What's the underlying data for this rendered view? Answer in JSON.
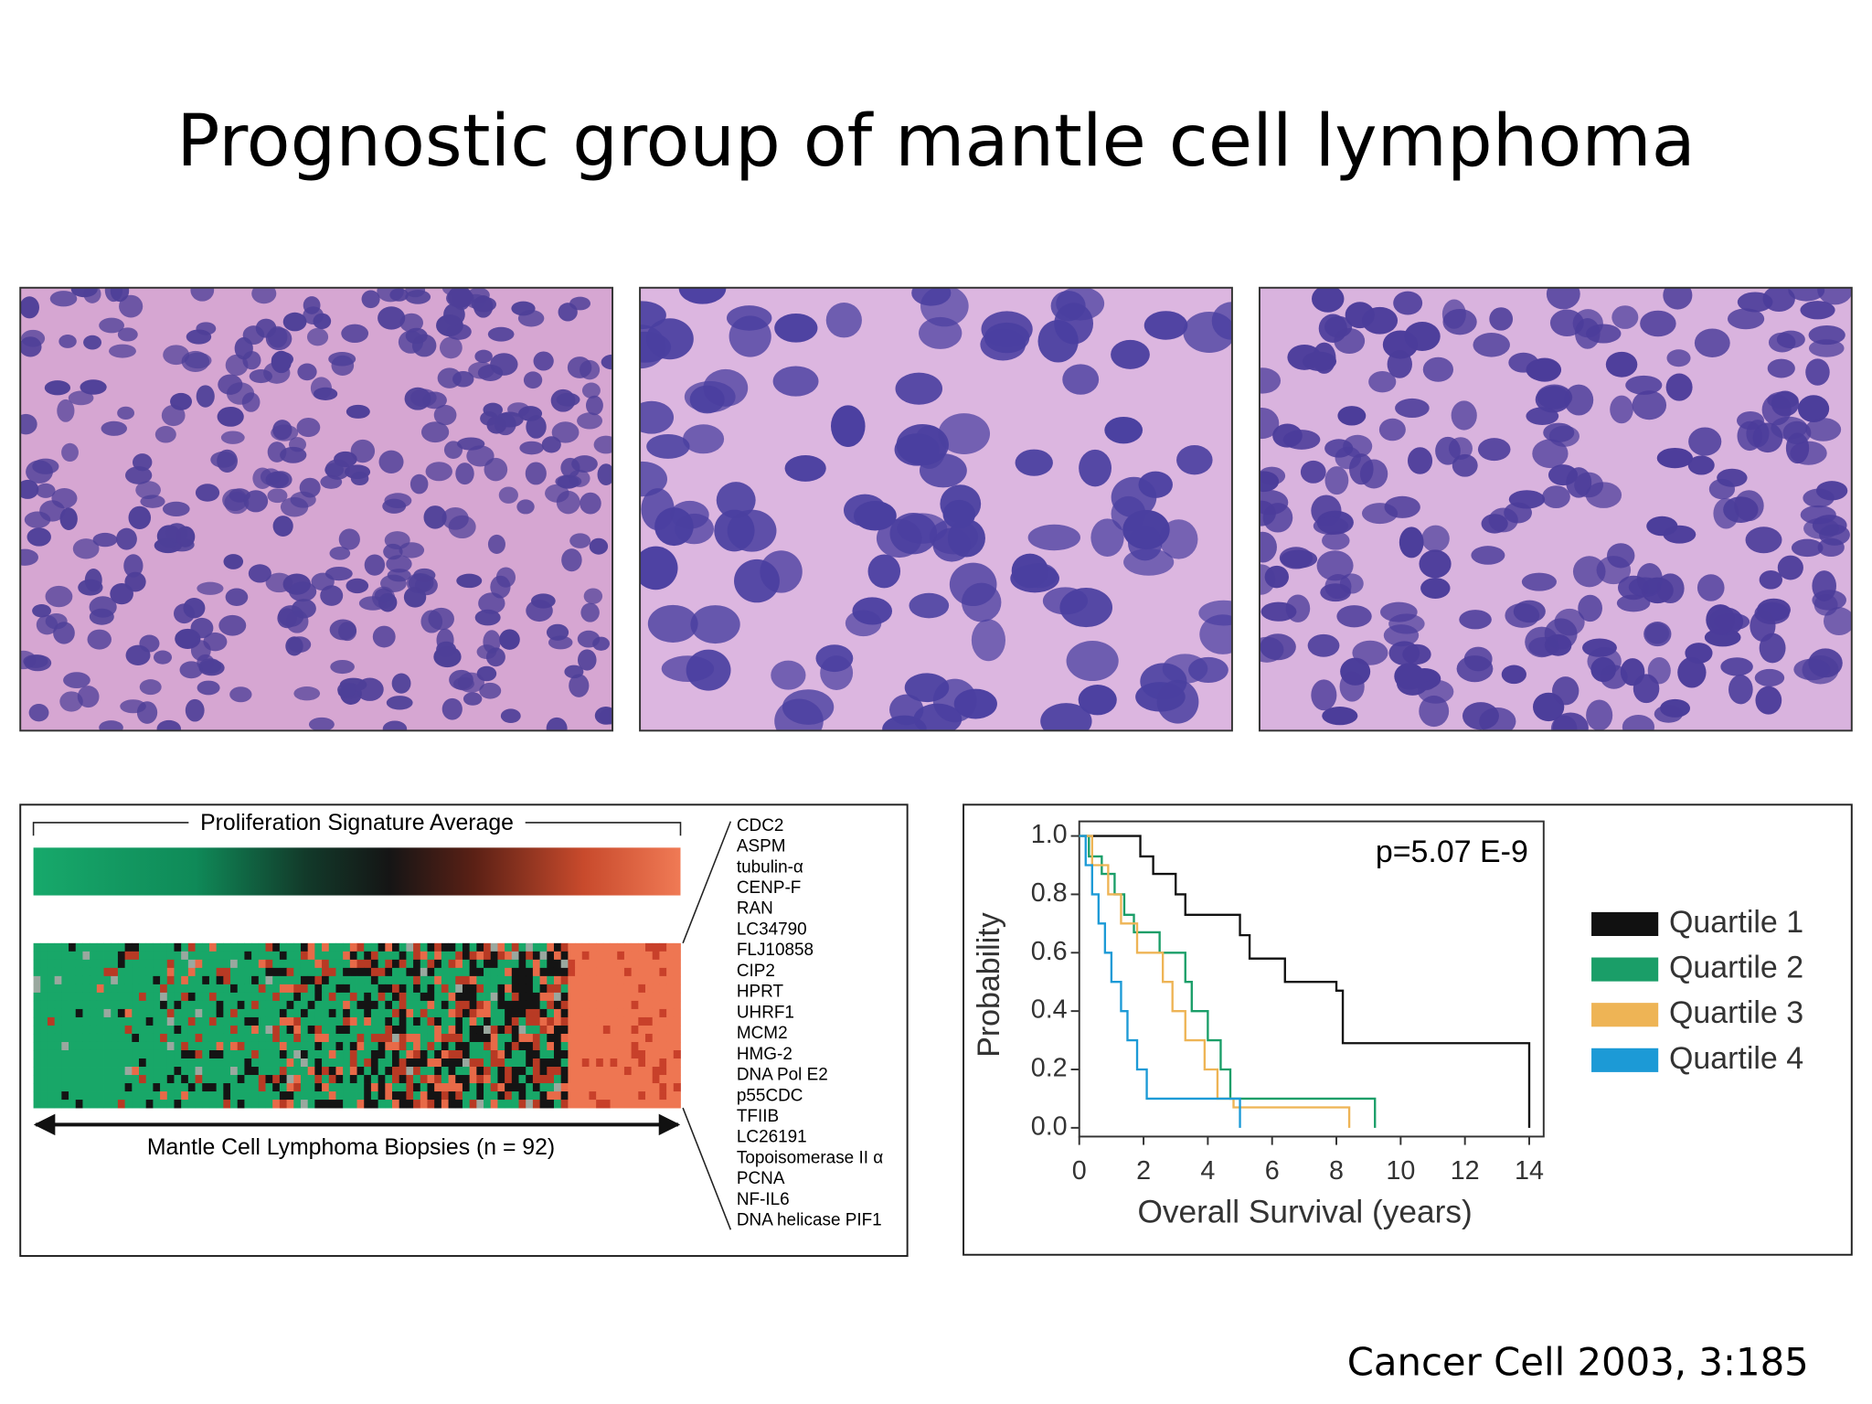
{
  "title": "Prognostic group of mantle cell lymphoma",
  "citation": "Cancer Cell 2003, 3:185",
  "heatmap": {
    "header": "Proliferation Signature Average",
    "footer": "Mantle Cell Lymphoma Biopsies (n = 92)",
    "genes": [
      "CDC2",
      "ASPM",
      "tubulin-α",
      "CENP-F",
      "RAN",
      "LC34790",
      "FLJ10858",
      "CIP2",
      "HPRT",
      "UHRF1",
      "MCM2",
      "HMG-2",
      "DNA Pol E2",
      "p55CDC",
      "TFIIB",
      "LC26191",
      "Topoisomerase II α",
      "PCNA",
      "NF-IL6",
      "DNA helicase PIF1"
    ]
  },
  "chart_data": {
    "type": "line",
    "annotation": "p=5.07 E-9",
    "x_label": "Overall Survival (years)",
    "y_label": "Probability",
    "xlim": [
      0,
      14.45
    ],
    "ylim": [
      -0.03,
      1.05
    ],
    "xticks": [
      0,
      2,
      4,
      6,
      8,
      10,
      12,
      14
    ],
    "yticks": [
      {
        "value": 0,
        "label": "0.0"
      },
      0.2,
      0.4,
      0.6,
      0.8,
      {
        "value": 1,
        "label": "1.0"
      }
    ],
    "series": [
      {
        "name": "Quartile 1",
        "color": "#111111",
        "x": [
          0,
          1.9,
          1.9,
          2.3,
          2.3,
          3.0,
          3.0,
          3.3,
          3.3,
          5.0,
          5.0,
          5.3,
          5.3,
          6.4,
          6.4,
          8.0,
          8.0,
          8.2,
          8.2,
          14,
          14
        ],
        "values": [
          1,
          1,
          0.93,
          0.93,
          0.87,
          0.87,
          0.8,
          0.8,
          0.73,
          0.73,
          0.66,
          0.66,
          0.58,
          0.58,
          0.5,
          0.5,
          0.47,
          0.47,
          0.29,
          0.29,
          0
        ]
      },
      {
        "name": "Quartile 2",
        "color": "#1a9e68",
        "x": [
          0,
          0.3,
          0.3,
          0.7,
          0.7,
          1.1,
          1.1,
          1.4,
          1.4,
          1.7,
          1.7,
          2.5,
          2.5,
          3.3,
          3.3,
          3.5,
          3.5,
          4.0,
          4.0,
          4.4,
          4.4,
          4.7,
          4.7,
          9.2,
          9.2
        ],
        "values": [
          1,
          1,
          0.93,
          0.93,
          0.87,
          0.87,
          0.8,
          0.8,
          0.73,
          0.73,
          0.67,
          0.67,
          0.6,
          0.6,
          0.5,
          0.5,
          0.4,
          0.4,
          0.3,
          0.3,
          0.2,
          0.2,
          0.1,
          0.1,
          0
        ]
      },
      {
        "name": "Quartile 3",
        "color": "#eeb455",
        "x": [
          0,
          0.4,
          0.4,
          0.9,
          0.9,
          1.3,
          1.3,
          1.8,
          1.8,
          2.6,
          2.6,
          2.9,
          2.9,
          3.3,
          3.3,
          3.9,
          3.9,
          4.3,
          4.3,
          4.8,
          4.8,
          8.4,
          8.4
        ],
        "values": [
          1,
          1,
          0.9,
          0.9,
          0.8,
          0.8,
          0.7,
          0.7,
          0.6,
          0.6,
          0.5,
          0.5,
          0.4,
          0.4,
          0.3,
          0.3,
          0.2,
          0.2,
          0.1,
          0.1,
          0.07,
          0.07,
          0
        ]
      },
      {
        "name": "Quartile 4",
        "color": "#1c9ad6",
        "x": [
          0,
          0.2,
          0.2,
          0.4,
          0.4,
          0.6,
          0.6,
          0.8,
          0.8,
          1.0,
          1.0,
          1.3,
          1.3,
          1.5,
          1.5,
          1.8,
          1.8,
          2.1,
          2.1,
          5.0,
          5.0
        ],
        "values": [
          1,
          1,
          0.9,
          0.9,
          0.8,
          0.8,
          0.7,
          0.7,
          0.6,
          0.6,
          0.5,
          0.5,
          0.4,
          0.4,
          0.3,
          0.3,
          0.2,
          0.2,
          0.1,
          0.1,
          0
        ]
      }
    ]
  }
}
